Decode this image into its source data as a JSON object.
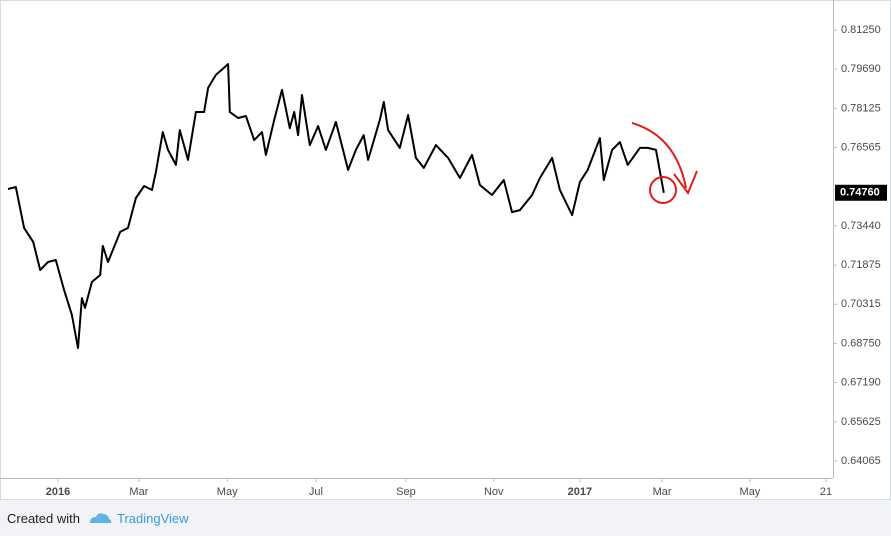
{
  "chart_data": {
    "type": "line",
    "color": "#000000",
    "x": [
      -1.15,
      -0.97,
      -0.78,
      -0.57,
      -0.41,
      -0.23,
      -0.05,
      0.14,
      0.32,
      0.46,
      0.55,
      0.62,
      0.78,
      0.97,
      1.03,
      1.15,
      1.43,
      1.61,
      1.79,
      1.98,
      2.16,
      2.25,
      2.41,
      2.53,
      2.71,
      2.8,
      2.99,
      3.17,
      3.36,
      3.45,
      3.63,
      3.91,
      3.95,
      4.14,
      4.32,
      4.51,
      4.69,
      4.78,
      4.97,
      5.15,
      5.33,
      5.43,
      5.52,
      5.61,
      5.79,
      5.98,
      6.16,
      6.39,
      6.67,
      6.85,
      7.03,
      7.13,
      7.4,
      7.49,
      7.59,
      7.86,
      8.05,
      8.23,
      8.41,
      8.69,
      8.97,
      9.24,
      9.52,
      9.7,
      9.98,
      10.25,
      10.44,
      10.62,
      10.9,
      11.08,
      11.36,
      11.54,
      11.82,
      12.0,
      12.18,
      12.46,
      12.55,
      12.74,
      12.92,
      13.1,
      13.38,
      13.56,
      13.75,
      13.93
    ],
    "values": [
      0.7491,
      0.7499,
      0.7336,
      0.728,
      0.7168,
      0.72,
      0.7208,
      0.7088,
      0.6989,
      0.6857,
      0.7056,
      0.7017,
      0.712,
      0.7148,
      0.7264,
      0.72,
      0.732,
      0.7336,
      0.7455,
      0.7503,
      0.7487,
      0.7559,
      0.7718,
      0.7647,
      0.7587,
      0.7726,
      0.7607,
      0.7798,
      0.7798,
      0.7894,
      0.7946,
      0.7989,
      0.7798,
      0.7774,
      0.7782,
      0.7686,
      0.7718,
      0.7627,
      0.7766,
      0.7886,
      0.7734,
      0.7798,
      0.7706,
      0.7866,
      0.7666,
      0.7742,
      0.7647,
      0.7758,
      0.7567,
      0.7647,
      0.7706,
      0.7607,
      0.7766,
      0.7838,
      0.7726,
      0.7655,
      0.7786,
      0.7615,
      0.7575,
      0.7666,
      0.7615,
      0.7535,
      0.7627,
      0.7507,
      0.7467,
      0.7527,
      0.7399,
      0.7407,
      0.7467,
      0.7535,
      0.7615,
      0.7487,
      0.7387,
      0.7519,
      0.7567,
      0.7694,
      0.7527,
      0.7647,
      0.7678,
      0.7587,
      0.7655,
      0.7655,
      0.7647,
      0.7476
    ],
    "xlim": [
      -1.15,
      17.82
    ],
    "xticks": [
      {
        "value": 0,
        "label": "2016",
        "bold": true
      },
      {
        "value": 1.86,
        "label": "Mar"
      },
      {
        "value": 3.89,
        "label": "May"
      },
      {
        "value": 5.93,
        "label": "Jul"
      },
      {
        "value": 8.0,
        "label": "Sep"
      },
      {
        "value": 10.02,
        "label": "Nov"
      },
      {
        "value": 12.0,
        "label": "2017",
        "bold": true
      },
      {
        "value": 13.89,
        "label": "Mar"
      },
      {
        "value": 15.91,
        "label": "May"
      },
      {
        "value": 17.66,
        "label": "21"
      }
    ],
    "ylim": [
      0.63387,
      0.82127
    ],
    "yticks": [
      {
        "value": 0.8125,
        "label": "0.81250"
      },
      {
        "value": 0.7969,
        "label": "0.79690"
      },
      {
        "value": 0.78125,
        "label": "0.78125"
      },
      {
        "value": 0.76565,
        "label": "0.76565"
      },
      {
        "value": 0.7344,
        "label": "0.73440"
      },
      {
        "value": 0.71875,
        "label": "0.71875"
      },
      {
        "value": 0.70315,
        "label": "0.70315"
      },
      {
        "value": 0.6875,
        "label": "0.68750"
      },
      {
        "value": 0.6719,
        "label": "0.67190"
      },
      {
        "value": 0.65625,
        "label": "0.65625"
      },
      {
        "value": 0.64065,
        "label": "0.64065"
      }
    ],
    "last_value": {
      "value": 0.7476,
      "label": "0.74760"
    }
  },
  "footer": {
    "prefix": "Created with",
    "brand": "TradingView"
  }
}
